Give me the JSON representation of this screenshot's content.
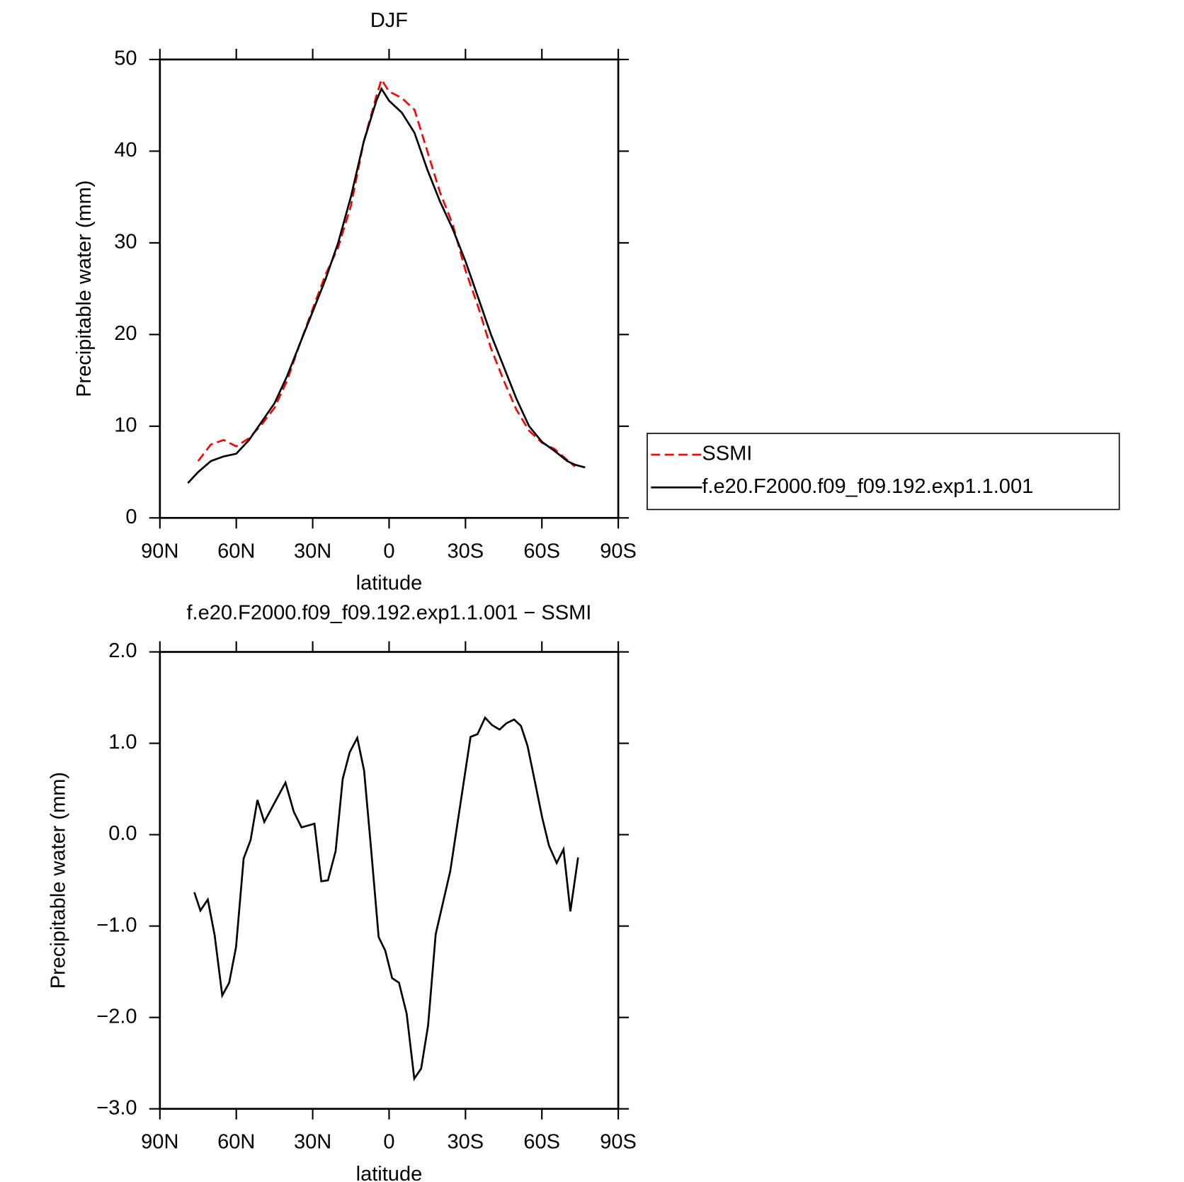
{
  "chart_data": [
    {
      "type": "line",
      "title": "DJF",
      "x_label": "latitude",
      "y_label": "Precipitable water (mm)",
      "x": [
        79,
        75,
        70,
        65,
        60,
        55,
        50,
        45,
        40,
        35,
        30,
        25,
        20,
        15,
        10,
        5,
        3,
        0,
        -5,
        -10,
        -15,
        -20,
        -25,
        -30,
        -35,
        -40,
        -45,
        -50,
        -55,
        -60,
        -65,
        -70,
        -73,
        -77
      ],
      "series": [
        {
          "name": "SSMI",
          "color": "#ff0000",
          "line_style": "dashed",
          "values": [
            null,
            6.2,
            8.0,
            8.5,
            7.8,
            8.7,
            10.2,
            12.0,
            15.0,
            19.0,
            22.8,
            26.5,
            29.5,
            34.0,
            41.0,
            46.0,
            47.8,
            46.5,
            45.8,
            44.5,
            40.0,
            35.5,
            32.0,
            27.0,
            23.0,
            18.5,
            15.0,
            11.8,
            9.5,
            8.2,
            7.5,
            6.3,
            5.6,
            null
          ]
        },
        {
          "name": "f.e20.F2000.f09_f09.192.exp1.1.001",
          "color": "#000000",
          "line_style": "solid",
          "values": [
            3.8,
            5.0,
            6.2,
            6.7,
            7.0,
            8.5,
            10.5,
            12.5,
            15.5,
            19.0,
            22.5,
            26.0,
            30.0,
            35.0,
            41.0,
            45.5,
            46.8,
            45.5,
            44.2,
            42.0,
            38.0,
            34.5,
            31.5,
            28.0,
            24.0,
            20.0,
            16.5,
            13.0,
            10.0,
            8.3,
            7.3,
            6.2,
            5.8,
            5.5
          ]
        }
      ],
      "xlim": [
        90,
        -90
      ],
      "xticks": [
        {
          "value": 90,
          "label": "90N"
        },
        {
          "value": 60,
          "label": "60N"
        },
        {
          "value": 30,
          "label": "30N"
        },
        0,
        {
          "value": -30,
          "label": "30S"
        },
        {
          "value": -60,
          "label": "60S"
        },
        {
          "value": -90,
          "label": "90S"
        }
      ],
      "ylim": [
        0,
        50
      ],
      "yticks": [
        0,
        10,
        20,
        30,
        40,
        50
      ],
      "legend": "right"
    },
    {
      "type": "line",
      "title": "f.e20.F2000.f09_f09.192.exp1.1.001 − SSMI",
      "x_label": "latitude",
      "y_label": "Precipitable water (mm)",
      "x": [
        76.5,
        74.1,
        71.2,
        68.5,
        65.5,
        62.8,
        60.1,
        57.1,
        54.4,
        51.7,
        49.0,
        40.7,
        37.4,
        34.4,
        29.3,
        26.6,
        24.0,
        21.0,
        18.2,
        15.5,
        12.5,
        9.8,
        7.1,
        4.1,
        1.5,
        -1.2,
        -3.9,
        -6.9,
        -9.9,
        -12.6,
        -15.3,
        -18.3,
        -24.0,
        -32.0,
        -34.7,
        -37.7,
        -40.4,
        -43.4,
        -46.1,
        -49.1,
        -51.8,
        -54.4,
        -57.4,
        -60.1,
        -62.8,
        -65.8,
        -68.5,
        -71.2,
        -74.2
      ],
      "values": [
        -0.63,
        -0.83,
        -0.71,
        -1.1,
        -1.76,
        -1.62,
        -1.23,
        -0.26,
        -0.06,
        0.38,
        0.14,
        0.57,
        0.25,
        0.08,
        0.12,
        -0.51,
        -0.5,
        -0.18,
        0.61,
        0.9,
        1.06,
        0.7,
        -0.15,
        -1.12,
        -1.27,
        -1.57,
        -1.62,
        -1.96,
        -2.67,
        -2.56,
        -2.09,
        -1.09,
        -0.4,
        1.07,
        1.1,
        1.28,
        1.2,
        1.15,
        1.22,
        1.26,
        1.19,
        0.97,
        0.56,
        0.19,
        -0.12,
        -0.31,
        -0.16,
        -0.84,
        -0.25
      ],
      "color": "#000000",
      "xlim": [
        90,
        -90
      ],
      "xticks": [
        {
          "value": 90,
          "label": "90N"
        },
        {
          "value": 60,
          "label": "60N"
        },
        {
          "value": 30,
          "label": "30N"
        },
        0,
        {
          "value": -30,
          "label": "30S"
        },
        {
          "value": -60,
          "label": "60S"
        },
        {
          "value": -90,
          "label": "90S"
        }
      ],
      "ylim": [
        -3,
        2
      ],
      "yticks": [
        {
          "value": -3,
          "label": "−3.0"
        },
        {
          "value": -2,
          "label": "−2.0"
        },
        {
          "value": -1,
          "label": "−1.0"
        },
        {
          "value": 0,
          "label": "0.0"
        },
        {
          "value": 1,
          "label": "1.0"
        },
        {
          "value": 2,
          "label": "2.0"
        }
      ]
    }
  ]
}
